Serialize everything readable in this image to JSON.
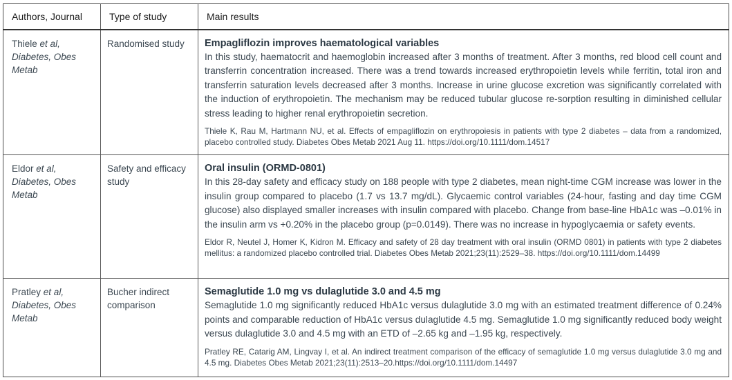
{
  "table": {
    "headers": [
      "Authors, Journal",
      "Type of study",
      "Main results"
    ],
    "rows": [
      {
        "author": "Thiele",
        "author_etal": "et al,",
        "journal": "Diabetes, Obes Metab",
        "study_type": "Randomised study",
        "title": "Empagliflozin improves haematological variables",
        "body": "In this study, haematocrit and haemoglobin increased after 3 months of treatment. After 3 months, red blood cell count and transferrin concentration increased. There was a trend towards increased erythropoietin levels while ferritin, total iron and transferrin saturation levels decreased after 3 months. Increase in urine glucose excretion was significantly correlated with the induction of erythropoietin. The mechanism may be reduced tubular glucose re-sorption resulting in diminished cellular stress leading to higher renal erythropoietin secretion.",
        "citation": "Thiele K, Rau M, Hartmann NU, et al. Effects of empagliflozin on erythropoiesis in patients with type 2 diabetes – data from a randomized, placebo controlled study. Diabetes Obes Metab 2021 Aug 11. https://doi.org/10.1111/dom.14517"
      },
      {
        "author": "Eldor",
        "author_etal": "et al,",
        "journal": "Diabetes, Obes Metab",
        "study_type": "Safety and efficacy study",
        "title": "Oral insulin (ORMD-0801)",
        "body": "In this 28-day safety and efficacy study on 188 people with type 2 diabetes, mean night-time CGM increase was lower in the insulin group compared to placebo (1.7 vs 13.7 mg/dL). Glycaemic control variables (24-hour, fasting and day time CGM glucose) also displayed smaller increases with insulin compared with placebo. Change from base-line HbA1c was –0.01% in the insulin arm vs +0.20% in the placebo group (p=0.0149). There was no increase in hypoglycaemia or safety events.",
        "citation": "Eldor R, Neutel J, Homer K, Kidron M. Efficacy and safety of 28 day treatment with oral insulin (ORMD 0801) in patients with type 2 diabetes mellitus: a randomized placebo controlled trial. Diabetes Obes Metab 2021;23(11):2529–38. https://doi.org/10.1111/dom.14499"
      },
      {
        "author": "Pratley",
        "author_etal": "et al,",
        "journal": "Diabetes, Obes Metab",
        "study_type": "Bucher indirect comparison",
        "title": "Semaglutide 1.0 mg vs dulaglutide 3.0 and 4.5 mg",
        "body": "Semaglutide 1.0 mg significantly reduced HbA1c versus dulaglutide 3.0 mg with an estimated treatment difference of 0.24% points and comparable reduction of HbA1c versus dulaglutide 4.5 mg. Semaglutide 1.0 mg significantly reduced body weight versus dulaglutide 3.0 and 4.5 mg with an ETD of –2.65 kg and –1.95 kg, respectively.",
        "citation": "Pratley RE, Catarig AM, Lingvay I, et al. An indirect treatment comparison of the efficacy of semaglutide 1.0 mg versus dulaglutide 3.0 mg and 4.5 mg. Diabetes Obes Metab 2021;23(11):2513–20.https://doi.org/10.1111/dom.14497"
      }
    ]
  },
  "colors": {
    "body_text": "#3c4852",
    "header_text": "#1c1c1c",
    "border": "#4a4a4a"
  }
}
